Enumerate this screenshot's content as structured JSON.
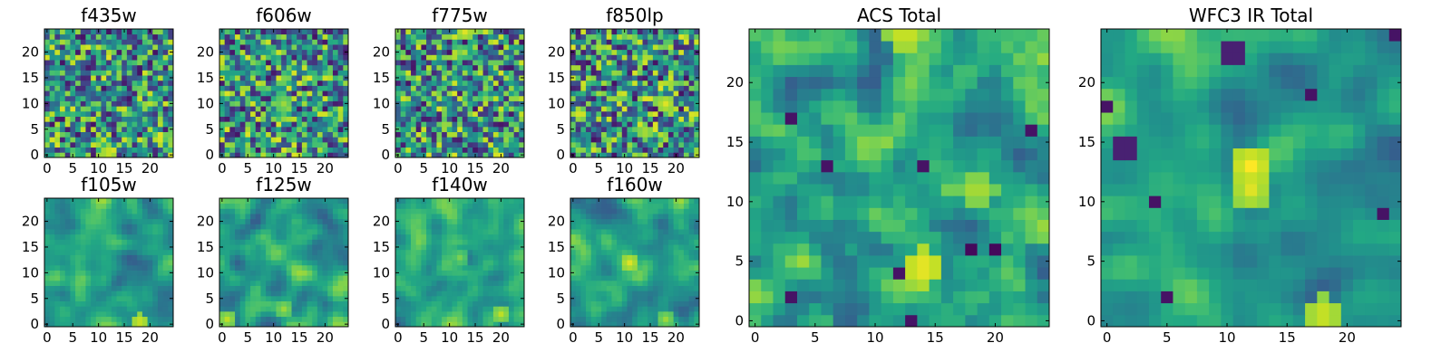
{
  "colormap": "viridis",
  "chart_data": [
    {
      "type": "heatmap",
      "title": "f435w",
      "xticks": [
        0,
        5,
        10,
        15,
        20
      ],
      "yticks": [
        0,
        5,
        10,
        15,
        20
      ],
      "grid_size": [
        25,
        25
      ],
      "texture": "noisy",
      "hotspots": [
        {
          "x": 12,
          "y": 0.5,
          "v": 0.95
        }
      ]
    },
    {
      "type": "heatmap",
      "title": "f606w",
      "xticks": [
        0,
        5,
        10,
        15,
        20
      ],
      "yticks": [
        0,
        5,
        10,
        15,
        20
      ],
      "grid_size": [
        25,
        25
      ],
      "texture": "noisy",
      "hotspots": [
        {
          "x": 12,
          "y": 10,
          "v": 0.85
        }
      ]
    },
    {
      "type": "heatmap",
      "title": "f775w",
      "xticks": [
        0,
        5,
        10,
        15,
        20
      ],
      "yticks": [
        0,
        5,
        10,
        15,
        20
      ],
      "grid_size": [
        25,
        25
      ],
      "texture": "noisy",
      "hotspots": [
        {
          "x": 13,
          "y": 24,
          "v": 0.95
        },
        {
          "x": 12,
          "y": 20,
          "v": 0.8
        }
      ]
    },
    {
      "type": "heatmap",
      "title": "f850lp",
      "xticks": [
        0,
        5,
        10,
        15,
        20
      ],
      "yticks": [
        0,
        5,
        10,
        15,
        20
      ],
      "grid_size": [
        25,
        25
      ],
      "texture": "noisy",
      "hotspots": [
        {
          "x": 18,
          "y": 10,
          "v": 0.95
        },
        {
          "x": 14,
          "y": 4.5,
          "v": 0.9
        }
      ]
    },
    {
      "type": "heatmap",
      "title": "f105w",
      "xticks": [
        0,
        5,
        10,
        15,
        20
      ],
      "yticks": [
        0,
        5,
        10,
        15,
        20
      ],
      "grid_size": [
        25,
        25
      ],
      "texture": "smooth",
      "hotspots": [
        {
          "x": 18,
          "y": 0.5,
          "v": 0.95
        }
      ]
    },
    {
      "type": "heatmap",
      "title": "f125w",
      "xticks": [
        0,
        5,
        10,
        15,
        20
      ],
      "yticks": [
        0,
        5,
        10,
        15,
        20
      ],
      "grid_size": [
        25,
        25
      ],
      "texture": "smooth",
      "hotspots": [
        {
          "x": 1,
          "y": 1,
          "v": 0.9
        },
        {
          "x": 12,
          "y": 3,
          "v": 0.85
        }
      ]
    },
    {
      "type": "heatmap",
      "title": "f140w",
      "xticks": [
        0,
        5,
        10,
        15,
        20
      ],
      "yticks": [
        0,
        5,
        10,
        15,
        20
      ],
      "grid_size": [
        25,
        25
      ],
      "texture": "smooth",
      "hotspots": [
        {
          "x": 20,
          "y": 2,
          "v": 0.9
        },
        {
          "x": 12,
          "y": 13,
          "v": 0.8
        }
      ]
    },
    {
      "type": "heatmap",
      "title": "f160w",
      "xticks": [
        0,
        5,
        10,
        15,
        20
      ],
      "yticks": [
        0,
        5,
        10,
        15,
        20
      ],
      "grid_size": [
        25,
        25
      ],
      "texture": "smooth",
      "hotspots": [
        {
          "x": 11,
          "y": 12,
          "v": 0.95
        },
        {
          "x": 18,
          "y": 1,
          "v": 0.85
        }
      ]
    },
    {
      "type": "heatmap",
      "title": "ACS Total",
      "xticks": [
        0,
        5,
        10,
        15,
        20
      ],
      "yticks": [
        0,
        5,
        10,
        15,
        20
      ],
      "grid_size": [
        25,
        25
      ],
      "texture": "medium",
      "hotspots": [
        {
          "x": 14,
          "y": 4.5,
          "v": 1.0
        },
        {
          "x": 12.5,
          "y": 24,
          "v": 0.95
        },
        {
          "x": 18.5,
          "y": 11,
          "v": 0.9
        }
      ],
      "coldspots": [
        {
          "x": 18,
          "y": 6,
          "v": 0.02
        },
        {
          "x": 20,
          "y": 6,
          "v": 0.02
        },
        {
          "x": 13,
          "y": 0,
          "v": 0.05
        },
        {
          "x": 6,
          "y": 13,
          "v": 0.05
        },
        {
          "x": 14,
          "y": 13,
          "v": 0.05
        },
        {
          "x": 3,
          "y": 17,
          "v": 0.05
        },
        {
          "x": 23,
          "y": 16,
          "v": 0.05
        },
        {
          "x": 12,
          "y": 4,
          "v": 0.05
        },
        {
          "x": 3,
          "y": 2,
          "v": 0.05
        }
      ]
    },
    {
      "type": "heatmap",
      "title": "WFC3 IR Total",
      "xticks": [
        0,
        5,
        10,
        15,
        20
      ],
      "yticks": [
        0,
        5,
        10,
        15,
        20
      ],
      "grid_size": [
        25,
        25
      ],
      "texture": "smooth",
      "hotspots": [
        {
          "x": 12,
          "y": 13,
          "v": 1.0
        },
        {
          "x": 12,
          "y": 11,
          "v": 0.95
        },
        {
          "x": 18,
          "y": 0.5,
          "v": 0.95
        }
      ],
      "coldspots": [
        {
          "x": 10.5,
          "y": 22.5,
          "v": 0.02
        },
        {
          "x": 1.5,
          "y": 14.5,
          "v": 0.02
        },
        {
          "x": 0,
          "y": 18,
          "v": 0.05
        },
        {
          "x": 17,
          "y": 19,
          "v": 0.05
        },
        {
          "x": 24,
          "y": 24,
          "v": 0.05
        },
        {
          "x": 23,
          "y": 9,
          "v": 0.05
        },
        {
          "x": 4,
          "y": 10,
          "v": 0.05
        },
        {
          "x": 5,
          "y": 2,
          "v": 0.05
        }
      ]
    }
  ]
}
